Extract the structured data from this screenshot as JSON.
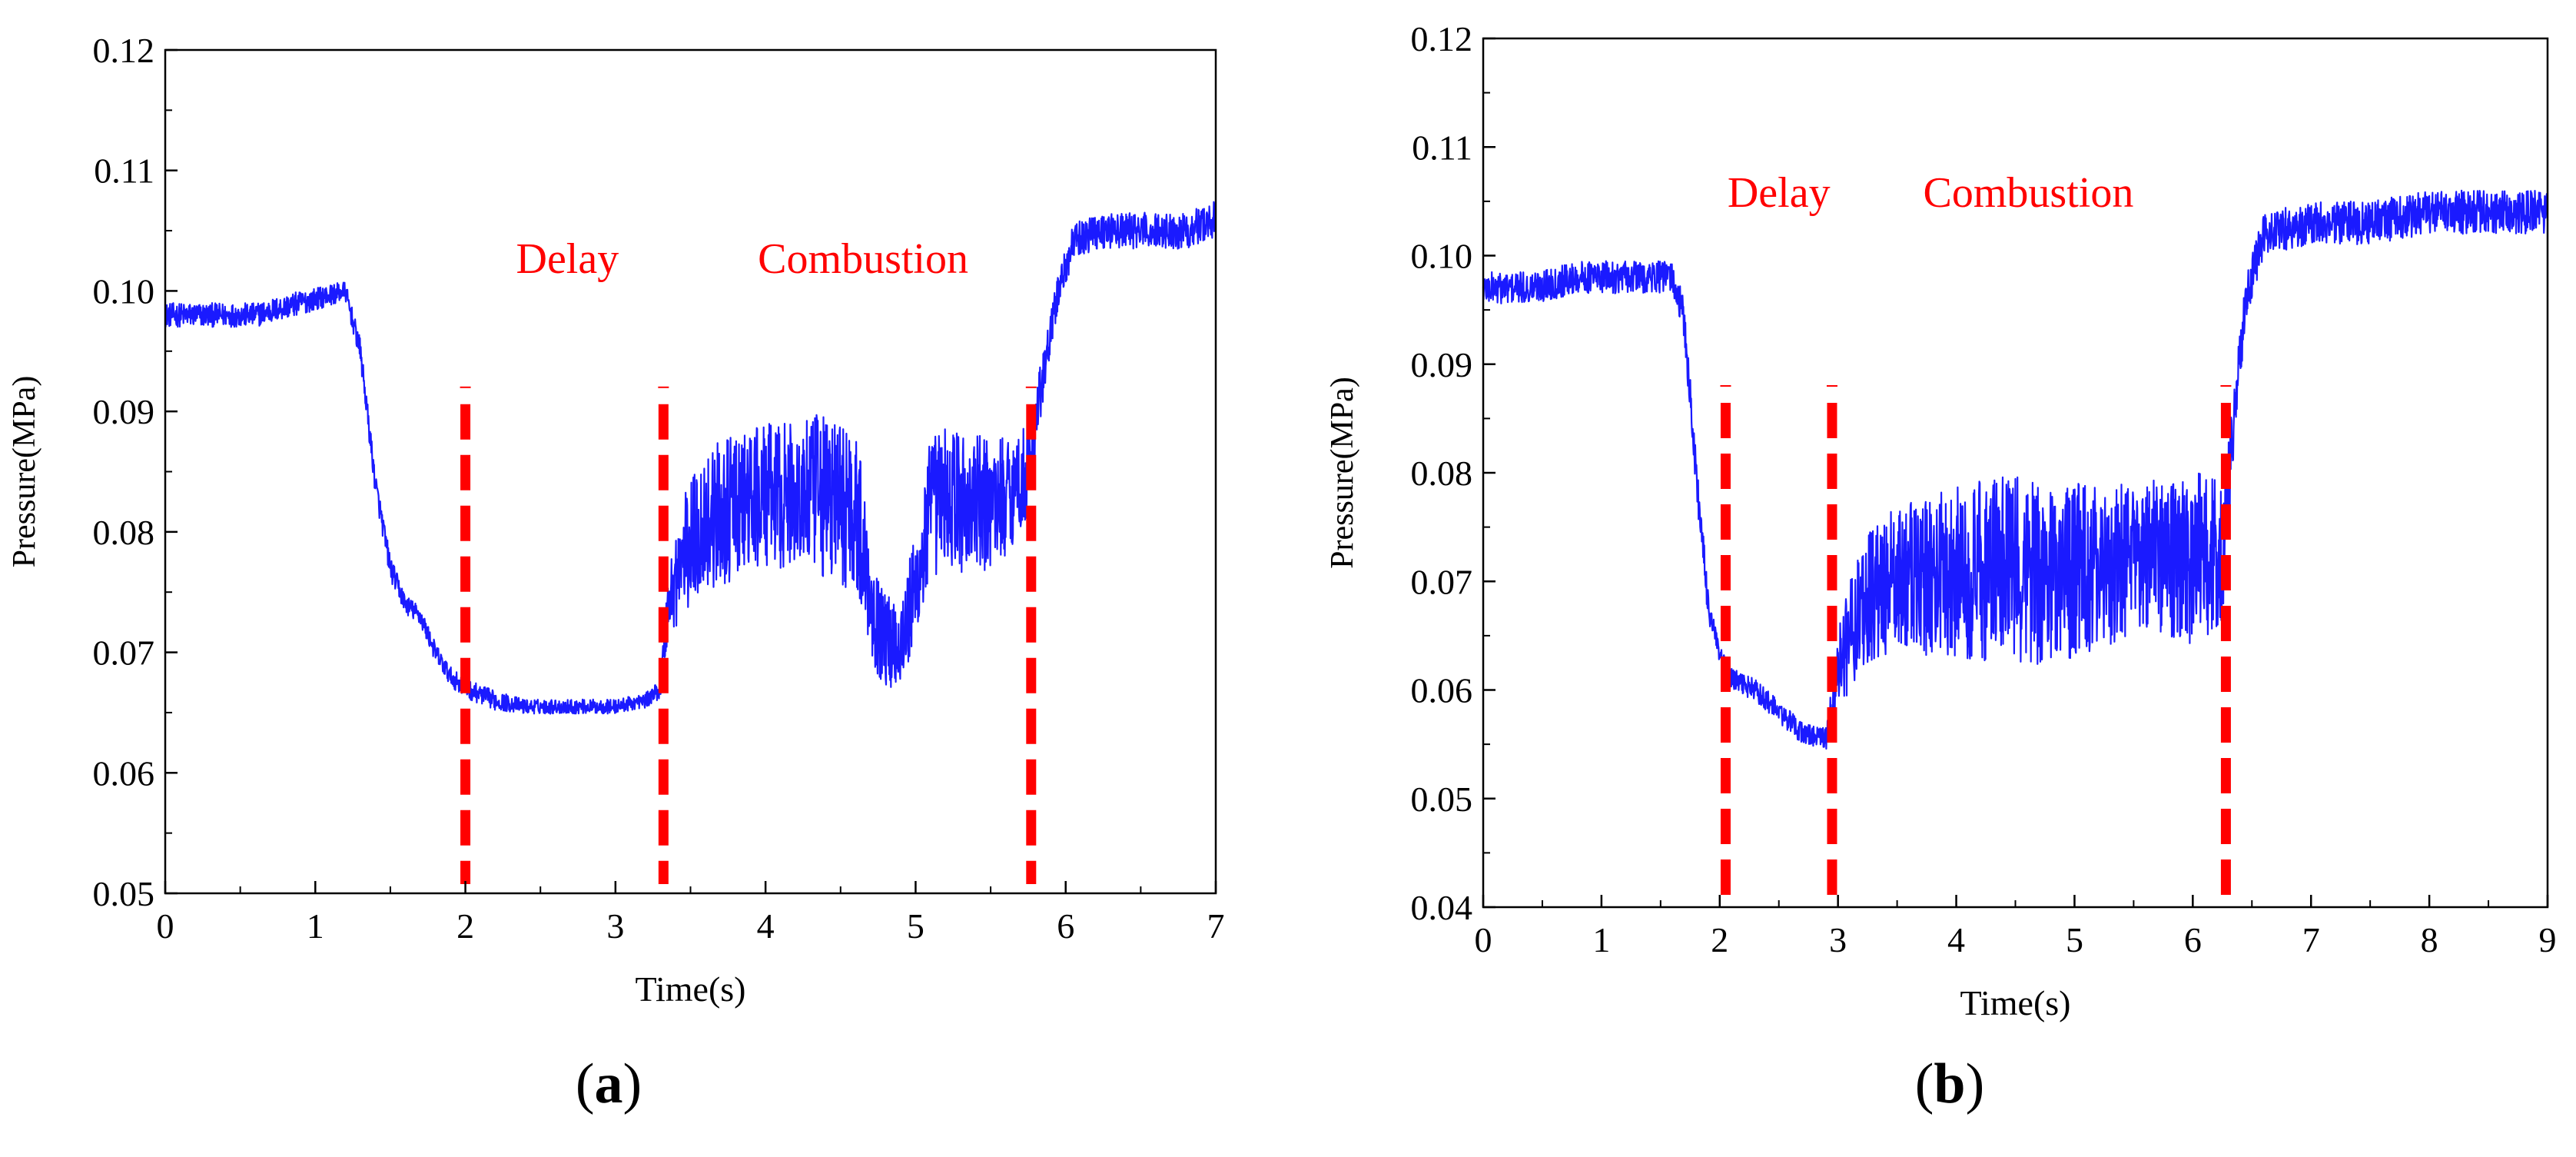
{
  "figure": {
    "panel_a_open": "(",
    "panel_a_letter": "a",
    "panel_a_close": ")",
    "panel_b_open": "(",
    "panel_b_letter": "b",
    "panel_b_close": ")"
  },
  "colors": {
    "trace": "#1a1aff",
    "marker": "#ff0000",
    "axis": "#000000"
  },
  "chart_data": [
    {
      "type": "line",
      "panel": "a",
      "xlabel": "Time(s)",
      "ylabel": "Pressure(MPa)",
      "xlim": [
        0,
        7
      ],
      "ylim": [
        0.05,
        0.12
      ],
      "xticks": [
        0,
        1,
        2,
        3,
        4,
        5,
        6,
        7
      ],
      "xtick_labels": [
        "0",
        "1",
        "2",
        "3",
        "4",
        "5",
        "6",
        "7"
      ],
      "yticks": [
        0.05,
        0.06,
        0.07,
        0.08,
        0.09,
        0.1,
        0.11,
        0.12
      ],
      "ytick_labels": [
        "0.05",
        "0.06",
        "0.07",
        "0.08",
        "0.09",
        "0.10",
        "0.11",
        "0.12"
      ],
      "series": [
        {
          "name": "Pressure",
          "x": [
            0,
            0.3,
            0.6,
            0.9,
            1.2,
            1.3,
            1.4,
            1.5,
            1.6,
            1.7,
            1.8,
            1.9,
            2.0,
            2.2,
            2.4,
            2.6,
            2.8,
            3.0,
            3.2,
            3.3,
            3.35,
            3.45,
            3.6,
            3.8,
            4.0,
            4.2,
            4.4,
            4.6,
            4.7,
            4.75,
            4.8,
            4.9,
            5.0,
            5.1,
            5.2,
            5.4,
            5.6,
            5.75,
            5.85,
            5.95,
            6.05,
            6.2,
            6.5,
            6.8,
            7.0
          ],
          "y": [
            0.098,
            0.098,
            0.098,
            0.099,
            0.1,
            0.095,
            0.084,
            0.077,
            0.074,
            0.073,
            0.07,
            0.068,
            0.067,
            0.066,
            0.0655,
            0.0655,
            0.0655,
            0.0655,
            0.066,
            0.067,
            0.074,
            0.078,
            0.081,
            0.082,
            0.083,
            0.083,
            0.083,
            0.082,
            0.075,
            0.072,
            0.071,
            0.071,
            0.075,
            0.082,
            0.083,
            0.082,
            0.083,
            0.085,
            0.093,
            0.1,
            0.104,
            0.105,
            0.105,
            0.105,
            0.106
          ],
          "noise": [
            0.001,
            0.001,
            0.001,
            0.001,
            0.0008,
            0.001,
            0.001,
            0.001,
            0.0008,
            0.0008,
            0.0008,
            0.0008,
            0.0008,
            0.0008,
            0.0006,
            0.0006,
            0.0006,
            0.0006,
            0.0006,
            0.0008,
            0.003,
            0.005,
            0.006,
            0.006,
            0.006,
            0.006,
            0.007,
            0.007,
            0.005,
            0.004,
            0.004,
            0.004,
            0.005,
            0.006,
            0.006,
            0.006,
            0.005,
            0.004,
            0.002,
            0.0015,
            0.0015,
            0.0015,
            0.0015,
            0.0015,
            0.0015
          ]
        }
      ],
      "markers": [
        2.0,
        3.32,
        5.77
      ],
      "annotations": [
        {
          "text": "Delay",
          "x": 2.68,
          "y": 0.1015
        },
        {
          "text": "Combustion",
          "x": 4.65,
          "y": 0.1015
        }
      ]
    },
    {
      "type": "line",
      "panel": "b",
      "xlabel": "Time(s)",
      "ylabel": "Pressure(MPa)",
      "xlim": [
        0,
        9
      ],
      "ylim": [
        0.04,
        0.12
      ],
      "xticks": [
        0,
        1,
        2,
        3,
        4,
        5,
        6,
        7,
        8,
        9
      ],
      "xtick_labels": [
        "0",
        "1",
        "2",
        "3",
        "4",
        "5",
        "6",
        "7",
        "8",
        "9"
      ],
      "yticks": [
        0.04,
        0.05,
        0.06,
        0.07,
        0.08,
        0.09,
        0.1,
        0.11,
        0.12
      ],
      "ytick_labels": [
        "0.04",
        "0.05",
        "0.06",
        "0.07",
        "0.08",
        "0.09",
        "0.10",
        "0.11",
        "0.12"
      ],
      "series": [
        {
          "name": "Pressure",
          "x": [
            0,
            0.4,
            0.8,
            1.2,
            1.6,
            1.7,
            1.8,
            1.9,
            2.0,
            2.1,
            2.3,
            2.5,
            2.7,
            2.9,
            3.0,
            3.2,
            3.5,
            4.0,
            4.5,
            5.0,
            5.5,
            6.0,
            6.25,
            6.35,
            6.45,
            6.6,
            7.0,
            7.5,
            8.0,
            8.5,
            9.0
          ],
          "y": [
            0.097,
            0.097,
            0.098,
            0.098,
            0.098,
            0.094,
            0.08,
            0.068,
            0.063,
            0.061,
            0.06,
            0.058,
            0.056,
            0.0555,
            0.062,
            0.068,
            0.07,
            0.071,
            0.071,
            0.071,
            0.072,
            0.072,
            0.073,
            0.085,
            0.096,
            0.102,
            0.103,
            0.103,
            0.104,
            0.104,
            0.104
          ],
          "noise": [
            0.0015,
            0.0015,
            0.0015,
            0.0015,
            0.0015,
            0.002,
            0.002,
            0.0015,
            0.001,
            0.001,
            0.001,
            0.001,
            0.001,
            0.001,
            0.004,
            0.006,
            0.007,
            0.008,
            0.009,
            0.008,
            0.007,
            0.008,
            0.007,
            0.003,
            0.002,
            0.002,
            0.002,
            0.002,
            0.002,
            0.002,
            0.002
          ]
        }
      ],
      "markers": [
        2.05,
        2.95,
        6.28
      ],
      "annotations": [
        {
          "text": "Delay",
          "x": 2.5,
          "y": 0.1045
        },
        {
          "text": "Combustion",
          "x": 4.61,
          "y": 0.1045
        }
      ]
    }
  ]
}
